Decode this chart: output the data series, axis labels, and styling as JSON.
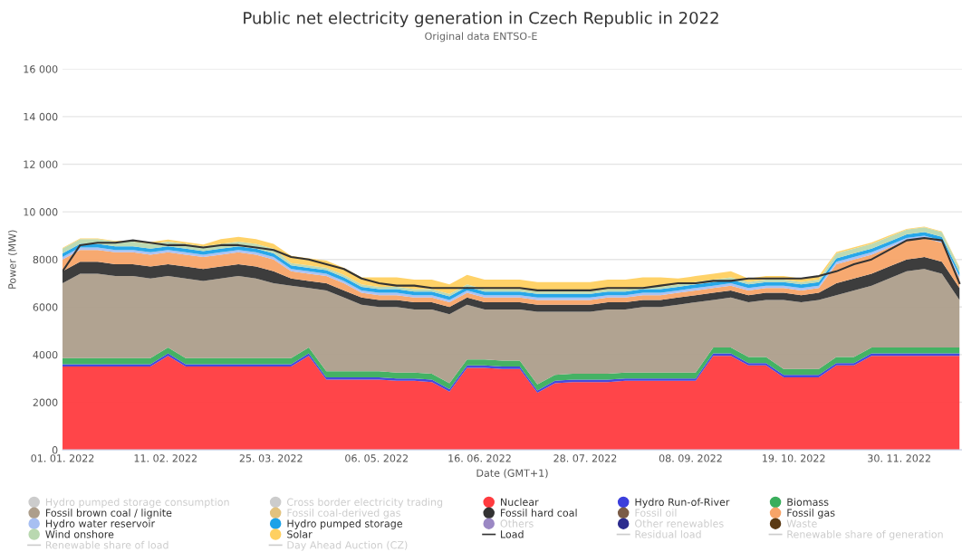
{
  "chart_data": {
    "type": "area",
    "stacked": true,
    "title": "Public net electricity generation in Czech Republic in 2022",
    "subtitle": "Original data ENTSO-E",
    "xlabel": "Date (GMT+1)",
    "ylabel": "Power (MW)",
    "x": [
      "2022-01-01",
      "2022-01-08",
      "2022-01-15",
      "2022-01-22",
      "2022-01-29",
      "2022-02-05",
      "2022-02-12",
      "2022-02-19",
      "2022-02-26",
      "2022-03-05",
      "2022-03-12",
      "2022-03-19",
      "2022-03-26",
      "2022-04-02",
      "2022-04-09",
      "2022-04-16",
      "2022-04-23",
      "2022-04-30",
      "2022-05-07",
      "2022-05-14",
      "2022-05-21",
      "2022-05-28",
      "2022-06-04",
      "2022-06-11",
      "2022-06-18",
      "2022-06-25",
      "2022-07-02",
      "2022-07-09",
      "2022-07-16",
      "2022-07-23",
      "2022-07-30",
      "2022-08-06",
      "2022-08-13",
      "2022-08-20",
      "2022-08-27",
      "2022-09-03",
      "2022-09-10",
      "2022-09-17",
      "2022-09-24",
      "2022-10-01",
      "2022-10-08",
      "2022-10-15",
      "2022-10-22",
      "2022-10-29",
      "2022-11-05",
      "2022-11-12",
      "2022-11-19",
      "2022-11-26",
      "2022-12-03",
      "2022-12-10",
      "2022-12-17",
      "2022-12-24"
    ],
    "xlim": [
      "2022-01-01",
      "2022-12-25"
    ],
    "xticks": [
      {
        "value": "2022-01-01",
        "label": "01. 01. 2022"
      },
      {
        "value": "2022-02-11",
        "label": "11. 02. 2022"
      },
      {
        "value": "2022-03-25",
        "label": "25. 03. 2022"
      },
      {
        "value": "2022-05-06",
        "label": "06. 05. 2022"
      },
      {
        "value": "2022-06-16",
        "label": "16. 06. 2022"
      },
      {
        "value": "2022-07-28",
        "label": "28. 07. 2022"
      },
      {
        "value": "2022-09-08",
        "label": "08. 09. 2022"
      },
      {
        "value": "2022-10-19",
        "label": "19. 10. 2022"
      },
      {
        "value": "2022-11-30",
        "label": "30. 11. 2022"
      }
    ],
    "ylim": [
      0,
      16000
    ],
    "yticks": [
      0,
      2000,
      4000,
      6000,
      8000,
      {
        "value": 10000,
        "label": "10 000"
      },
      {
        "value": 12000,
        "label": "12 000"
      },
      {
        "value": 14000,
        "label": "14 000"
      },
      {
        "value": 16000,
        "label": "16 000"
      }
    ],
    "grid": "y",
    "legend": "bottom",
    "series": [
      {
        "name": "Hydro pumped storage consumption",
        "color": "#cccccc",
        "values": [
          null,
          null,
          null,
          null,
          null,
          null,
          null,
          null,
          null,
          null,
          null,
          null,
          null,
          null,
          null,
          null,
          null,
          null,
          null,
          null,
          null,
          null,
          null,
          null,
          null,
          null,
          null,
          null,
          null,
          null,
          null,
          null,
          null,
          null,
          null,
          null,
          null,
          null,
          null,
          null,
          null,
          null,
          null,
          null,
          null,
          null,
          null,
          null,
          null,
          null,
          null,
          null
        ]
      },
      {
        "name": "Cross border electricity trading",
        "color": "#cccccc",
        "values": [
          null,
          null,
          null,
          null,
          null,
          null,
          null,
          null,
          null,
          null,
          null,
          null,
          null,
          null,
          null,
          null,
          null,
          null,
          null,
          null,
          null,
          null,
          null,
          null,
          null,
          null,
          null,
          null,
          null,
          null,
          null,
          null,
          null,
          null,
          null,
          null,
          null,
          null,
          null,
          null,
          null,
          null,
          null,
          null,
          null,
          null,
          null,
          null,
          null,
          null,
          null,
          null
        ]
      },
      {
        "name": "Nuclear",
        "color": "#ff3b3f",
        "values": [
          3500,
          3500,
          3500,
          3500,
          3500,
          3500,
          3950,
          3500,
          3500,
          3500,
          3500,
          3500,
          3500,
          3500,
          3950,
          2950,
          2950,
          2950,
          2950,
          2900,
          2900,
          2850,
          2450,
          3450,
          3450,
          3400,
          3400,
          2400,
          2800,
          2850,
          2850,
          2850,
          2900,
          2900,
          2900,
          2900,
          2900,
          3950,
          3950,
          3550,
          3550,
          3050,
          3050,
          3050,
          3550,
          3550,
          3950,
          3950,
          3950,
          3950,
          3950,
          3950
        ]
      },
      {
        "name": "Hydro Run-of-River",
        "color": "#3c3fdc",
        "values": [
          100,
          100,
          100,
          100,
          100,
          100,
          100,
          100,
          100,
          100,
          100,
          100,
          100,
          100,
          100,
          100,
          100,
          100,
          100,
          100,
          100,
          100,
          100,
          100,
          100,
          100,
          100,
          100,
          100,
          100,
          100,
          100,
          100,
          100,
          100,
          100,
          100,
          100,
          100,
          100,
          100,
          100,
          100,
          100,
          100,
          100,
          100,
          100,
          100,
          100,
          100,
          100
        ]
      },
      {
        "name": "Biomass",
        "color": "#3aae5c",
        "values": [
          250,
          250,
          250,
          250,
          250,
          250,
          250,
          250,
          250,
          250,
          250,
          250,
          250,
          250,
          250,
          250,
          250,
          250,
          250,
          250,
          250,
          250,
          250,
          250,
          250,
          250,
          250,
          250,
          250,
          250,
          250,
          250,
          250,
          250,
          250,
          250,
          250,
          250,
          250,
          250,
          250,
          250,
          250,
          250,
          250,
          250,
          250,
          250,
          250,
          250,
          250,
          250
        ]
      },
      {
        "name": "Fossil brown coal / lignite",
        "color": "#ad9e8b",
        "values": [
          3150,
          3550,
          3550,
          3450,
          3450,
          3350,
          3000,
          3350,
          3250,
          3350,
          3450,
          3350,
          3150,
          3050,
          2500,
          3400,
          3100,
          2800,
          2700,
          2750,
          2650,
          2700,
          2900,
          2300,
          2100,
          2150,
          2150,
          3050,
          2650,
          2600,
          2600,
          2700,
          2650,
          2750,
          2750,
          2850,
          2950,
          2000,
          2100,
          2300,
          2400,
          2900,
          2800,
          2900,
          2600,
          2800,
          2600,
          2900,
          3200,
          3300,
          3100,
          2000
        ]
      },
      {
        "name": "Fossil coal-derived gas",
        "color": "#e2c27e",
        "values": [
          null,
          null,
          null,
          null,
          null,
          null,
          null,
          null,
          null,
          null,
          null,
          null,
          null,
          null,
          null,
          null,
          null,
          null,
          null,
          null,
          null,
          null,
          null,
          null,
          null,
          null,
          null,
          null,
          null,
          null,
          null,
          null,
          null,
          null,
          null,
          null,
          null,
          null,
          null,
          null,
          null,
          null,
          null,
          null,
          null,
          null,
          null,
          null,
          null,
          null,
          null,
          null
        ]
      },
      {
        "name": "Fossil hard coal",
        "color": "#333333",
        "values": [
          500,
          500,
          500,
          500,
          500,
          500,
          500,
          500,
          500,
          500,
          500,
          500,
          500,
          300,
          300,
          300,
          300,
          300,
          300,
          300,
          300,
          300,
          300,
          300,
          300,
          300,
          300,
          300,
          300,
          300,
          300,
          300,
          300,
          300,
          300,
          300,
          300,
          300,
          300,
          300,
          300,
          300,
          300,
          300,
          500,
          500,
          500,
          500,
          500,
          500,
          500,
          500
        ]
      },
      {
        "name": "Fossil oil",
        "color": "#7b5c47",
        "values": [
          null,
          null,
          null,
          null,
          null,
          null,
          null,
          null,
          null,
          null,
          null,
          null,
          null,
          null,
          null,
          null,
          null,
          null,
          null,
          null,
          null,
          null,
          null,
          null,
          null,
          null,
          null,
          null,
          null,
          null,
          null,
          null,
          null,
          null,
          null,
          null,
          null,
          null,
          null,
          null,
          null,
          null,
          null,
          null,
          null,
          null,
          null,
          null,
          null,
          null,
          null,
          null
        ]
      },
      {
        "name": "Fossil gas",
        "color": "#f7a468",
        "values": [
          500,
          500,
          500,
          500,
          500,
          500,
          500,
          500,
          500,
          500,
          500,
          500,
          500,
          300,
          300,
          300,
          300,
          200,
          200,
          200,
          200,
          200,
          200,
          200,
          200,
          200,
          200,
          200,
          200,
          200,
          200,
          200,
          200,
          200,
          200,
          200,
          200,
          200,
          200,
          200,
          200,
          200,
          200,
          200,
          800,
          800,
          800,
          800,
          800,
          800,
          800,
          400
        ]
      },
      {
        "name": "Hydro water reservoir",
        "color": "#a7bff2",
        "values": [
          100,
          100,
          100,
          100,
          100,
          100,
          100,
          100,
          100,
          100,
          100,
          100,
          100,
          100,
          100,
          100,
          100,
          100,
          100,
          100,
          100,
          100,
          100,
          100,
          100,
          100,
          100,
          100,
          100,
          100,
          100,
          100,
          100,
          100,
          100,
          100,
          100,
          100,
          100,
          100,
          100,
          100,
          100,
          100,
          100,
          100,
          100,
          100,
          100,
          100,
          100,
          100
        ]
      },
      {
        "name": "Hydro pumped storage",
        "color": "#1ba2e8",
        "values": [
          150,
          150,
          150,
          150,
          150,
          150,
          150,
          150,
          150,
          150,
          150,
          150,
          150,
          150,
          150,
          150,
          150,
          150,
          150,
          150,
          150,
          150,
          150,
          150,
          150,
          150,
          150,
          150,
          150,
          150,
          150,
          150,
          150,
          150,
          150,
          150,
          150,
          150,
          150,
          150,
          150,
          150,
          150,
          150,
          150,
          150,
          150,
          150,
          150,
          150,
          150,
          150
        ]
      },
      {
        "name": "Others",
        "color": "#9b88c4",
        "values": [
          null,
          null,
          null,
          null,
          null,
          null,
          null,
          null,
          null,
          null,
          null,
          null,
          null,
          null,
          null,
          null,
          null,
          null,
          null,
          null,
          null,
          null,
          null,
          null,
          null,
          null,
          null,
          null,
          null,
          null,
          null,
          null,
          null,
          null,
          null,
          null,
          null,
          null,
          null,
          null,
          null,
          null,
          null,
          null,
          null,
          null,
          null,
          null,
          null,
          null,
          null,
          null
        ]
      },
      {
        "name": "Other renewables",
        "color": "#2c2c8e",
        "values": [
          null,
          null,
          null,
          null,
          null,
          null,
          null,
          null,
          null,
          null,
          null,
          null,
          null,
          null,
          null,
          null,
          null,
          null,
          null,
          null,
          null,
          null,
          null,
          null,
          null,
          null,
          null,
          null,
          null,
          null,
          null,
          null,
          null,
          null,
          null,
          null,
          null,
          null,
          null,
          null,
          null,
          null,
          null,
          null,
          null,
          null,
          null,
          null,
          null,
          null,
          null,
          null
        ]
      },
      {
        "name": "Waste",
        "color": "#5a3a14",
        "values": [
          null,
          null,
          null,
          null,
          null,
          null,
          null,
          null,
          null,
          null,
          null,
          null,
          null,
          null,
          null,
          null,
          null,
          null,
          null,
          null,
          null,
          null,
          null,
          null,
          null,
          null,
          null,
          null,
          null,
          null,
          null,
          null,
          null,
          null,
          null,
          null,
          null,
          null,
          null,
          null,
          null,
          null,
          null,
          null,
          null,
          null,
          null,
          null,
          null,
          null,
          null,
          null
        ]
      },
      {
        "name": "Wind onshore",
        "color": "#b9d8b0",
        "values": [
          200,
          200,
          200,
          200,
          200,
          200,
          200,
          200,
          200,
          200,
          200,
          200,
          200,
          100,
          100,
          100,
          100,
          100,
          100,
          100,
          100,
          100,
          100,
          100,
          100,
          100,
          100,
          100,
          100,
          100,
          100,
          100,
          100,
          100,
          100,
          100,
          100,
          100,
          100,
          100,
          100,
          100,
          100,
          100,
          200,
          200,
          200,
          200,
          200,
          200,
          200,
          200
        ]
      },
      {
        "name": "Solar",
        "color": "#ffd060",
        "values": [
          30,
          30,
          30,
          30,
          30,
          80,
          80,
          80,
          80,
          200,
          200,
          200,
          200,
          300,
          300,
          300,
          300,
          300,
          400,
          400,
          400,
          400,
          400,
          400,
          400,
          400,
          400,
          400,
          400,
          400,
          400,
          400,
          400,
          400,
          400,
          250,
          250,
          250,
          250,
          150,
          150,
          150,
          150,
          150,
          60,
          60,
          60,
          60,
          30,
          30,
          30,
          30
        ]
      },
      {
        "name": "Load",
        "type": "line",
        "color": "#333333",
        "values": [
          7500,
          8600,
          8700,
          8700,
          8800,
          8700,
          8600,
          8600,
          8500,
          8600,
          8600,
          8500,
          8400,
          8100,
          8000,
          7800,
          7600,
          7200,
          7000,
          6900,
          6900,
          6800,
          6800,
          6800,
          6800,
          6800,
          6800,
          6700,
          6700,
          6700,
          6700,
          6800,
          6800,
          6800,
          6900,
          7000,
          7000,
          7100,
          7100,
          7200,
          7200,
          7200,
          7200,
          7300,
          7500,
          7800,
          8000,
          8400,
          8800,
          8900,
          8800,
          7000
        ]
      },
      {
        "name": "Residual load",
        "type": "line",
        "color": "#cccccc",
        "values": [
          null,
          null,
          null,
          null,
          null,
          null,
          null,
          null,
          null,
          null,
          null,
          null,
          null,
          null,
          null,
          null,
          null,
          null,
          null,
          null,
          null,
          null,
          null,
          null,
          null,
          null,
          null,
          null,
          null,
          null,
          null,
          null,
          null,
          null,
          null,
          null,
          null,
          null,
          null,
          null,
          null,
          null,
          null,
          null,
          null,
          null,
          null,
          null,
          null,
          null,
          null,
          null
        ]
      },
      {
        "name": "Renewable share of generation",
        "type": "line",
        "color": "#cccccc",
        "values": [
          null,
          null,
          null,
          null,
          null,
          null,
          null,
          null,
          null,
          null,
          null,
          null,
          null,
          null,
          null,
          null,
          null,
          null,
          null,
          null,
          null,
          null,
          null,
          null,
          null,
          null,
          null,
          null,
          null,
          null,
          null,
          null,
          null,
          null,
          null,
          null,
          null,
          null,
          null,
          null,
          null,
          null,
          null,
          null,
          null,
          null,
          null,
          null,
          null,
          null,
          null,
          null
        ]
      },
      {
        "name": "Renewable share of load",
        "type": "line",
        "color": "#cccccc",
        "values": [
          null,
          null,
          null,
          null,
          null,
          null,
          null,
          null,
          null,
          null,
          null,
          null,
          null,
          null,
          null,
          null,
          null,
          null,
          null,
          null,
          null,
          null,
          null,
          null,
          null,
          null,
          null,
          null,
          null,
          null,
          null,
          null,
          null,
          null,
          null,
          null,
          null,
          null,
          null,
          null,
          null,
          null,
          null,
          null,
          null,
          null,
          null,
          null,
          null,
          null,
          null,
          null
        ]
      },
      {
        "name": "Day Ahead Auction (CZ)",
        "type": "line",
        "color": "#cccccc",
        "values": [
          null,
          null,
          null,
          null,
          null,
          null,
          null,
          null,
          null,
          null,
          null,
          null,
          null,
          null,
          null,
          null,
          null,
          null,
          null,
          null,
          null,
          null,
          null,
          null,
          null,
          null,
          null,
          null,
          null,
          null,
          null,
          null,
          null,
          null,
          null,
          null,
          null,
          null,
          null,
          null,
          null,
          null,
          null,
          null,
          null,
          null,
          null,
          null,
          null,
          null,
          null,
          null
        ]
      }
    ]
  }
}
